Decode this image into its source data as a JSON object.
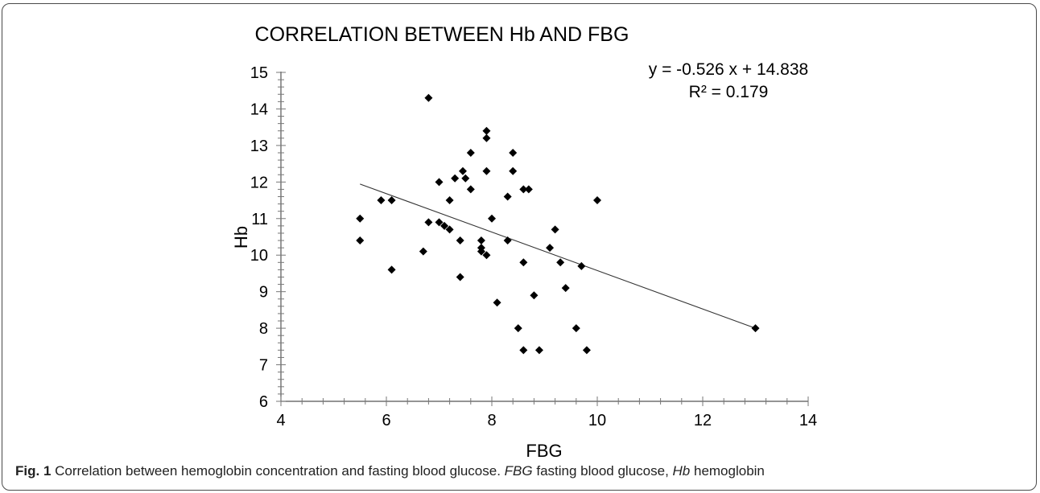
{
  "chart_data": {
    "type": "scatter",
    "title": "CORRELATION BETWEEN Hb AND FBG",
    "xlabel": "FBG",
    "ylabel": "Hb",
    "xlim": [
      4,
      14
    ],
    "ylim": [
      6,
      15
    ],
    "x_ticks": [
      4,
      6,
      8,
      10,
      12,
      14
    ],
    "y_ticks": [
      6,
      7,
      8,
      9,
      10,
      11,
      12,
      13,
      14,
      15
    ],
    "x_minor_step": 0.4,
    "y_minor_step": 0.2,
    "grid": false,
    "marker": "diamond",
    "marker_color": "#000000",
    "points": [
      {
        "x": 5.5,
        "y": 11.0
      },
      {
        "x": 5.5,
        "y": 10.4
      },
      {
        "x": 5.9,
        "y": 11.5
      },
      {
        "x": 6.1,
        "y": 11.5
      },
      {
        "x": 6.1,
        "y": 9.6
      },
      {
        "x": 6.7,
        "y": 10.1
      },
      {
        "x": 6.8,
        "y": 14.3
      },
      {
        "x": 6.8,
        "y": 10.9
      },
      {
        "x": 7.0,
        "y": 12.0
      },
      {
        "x": 7.0,
        "y": 10.9
      },
      {
        "x": 7.1,
        "y": 10.8
      },
      {
        "x": 7.2,
        "y": 10.7
      },
      {
        "x": 7.2,
        "y": 11.5
      },
      {
        "x": 7.3,
        "y": 12.1
      },
      {
        "x": 7.4,
        "y": 10.4
      },
      {
        "x": 7.4,
        "y": 9.4
      },
      {
        "x": 7.45,
        "y": 12.3
      },
      {
        "x": 7.5,
        "y": 12.1
      },
      {
        "x": 7.6,
        "y": 11.8
      },
      {
        "x": 7.6,
        "y": 12.8
      },
      {
        "x": 7.8,
        "y": 10.4
      },
      {
        "x": 7.8,
        "y": 10.2
      },
      {
        "x": 7.8,
        "y": 10.1
      },
      {
        "x": 7.9,
        "y": 10.0
      },
      {
        "x": 7.9,
        "y": 13.4
      },
      {
        "x": 7.9,
        "y": 13.2
      },
      {
        "x": 7.9,
        "y": 12.3
      },
      {
        "x": 8.0,
        "y": 11.0
      },
      {
        "x": 8.1,
        "y": 8.7
      },
      {
        "x": 8.3,
        "y": 11.6
      },
      {
        "x": 8.3,
        "y": 10.4
      },
      {
        "x": 8.4,
        "y": 12.8
      },
      {
        "x": 8.4,
        "y": 12.3
      },
      {
        "x": 8.5,
        "y": 8.0
      },
      {
        "x": 8.6,
        "y": 11.8
      },
      {
        "x": 8.6,
        "y": 9.8
      },
      {
        "x": 8.6,
        "y": 7.4
      },
      {
        "x": 8.7,
        "y": 11.8
      },
      {
        "x": 8.8,
        "y": 8.9
      },
      {
        "x": 8.9,
        "y": 7.4
      },
      {
        "x": 9.1,
        "y": 10.2
      },
      {
        "x": 9.2,
        "y": 10.7
      },
      {
        "x": 9.3,
        "y": 9.8
      },
      {
        "x": 9.4,
        "y": 9.1
      },
      {
        "x": 9.6,
        "y": 8.0
      },
      {
        "x": 9.7,
        "y": 9.7
      },
      {
        "x": 9.8,
        "y": 7.4
      },
      {
        "x": 10.0,
        "y": 11.5
      },
      {
        "x": 13.0,
        "y": 8.0
      }
    ],
    "trendline": {
      "slope": -0.526,
      "intercept": 14.838,
      "x_range": [
        5.5,
        13.0
      ],
      "equation": "y = -0.526 x + 14.838",
      "r_squared": "R² = 0.179"
    }
  },
  "caption": {
    "fig_label": "Fig. 1",
    "part1": " Correlation between hemoglobin concentration and fasting blood glucose. ",
    "abbr1": "FBG",
    "part2": " fasting blood glucose, ",
    "abbr2": "Hb",
    "part3": " hemoglobin"
  }
}
